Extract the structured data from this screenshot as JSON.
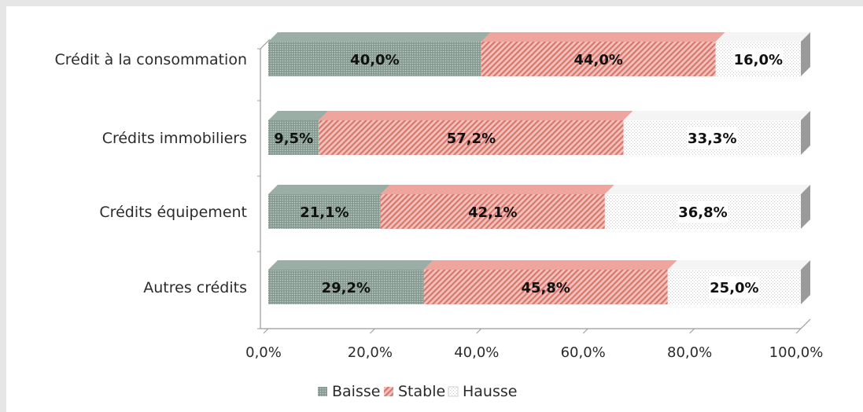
{
  "chart_data": {
    "type": "bar",
    "orientation": "horizontal",
    "stacked": true,
    "three_d": true,
    "categories": [
      "Crédit à la consommation",
      "Crédits immobiliers",
      "Crédits équipement",
      "Autres crédits"
    ],
    "series": [
      {
        "name": "Baisse",
        "values": [
          40.0,
          9.5,
          21.1,
          29.2
        ],
        "labels": [
          "40,0%",
          "9,5%",
          "21,1%",
          "29,2%"
        ],
        "color": "#8fa39b",
        "pattern": "dots"
      },
      {
        "name": "Stable",
        "values": [
          44.0,
          57.2,
          42.1,
          45.8
        ],
        "labels": [
          "44,0%",
          "57,2%",
          "42,1%",
          "45,8%"
        ],
        "color": "#e8948c",
        "pattern": "diagonal"
      },
      {
        "name": "Hausse",
        "values": [
          16.0,
          33.3,
          36.8,
          25.0
        ],
        "labels": [
          "16,0%",
          "33,3%",
          "36,8%",
          "25,0%"
        ],
        "color": "#f2f2f2",
        "pattern": "light-dots"
      }
    ],
    "x_ticks": [
      "0,0%",
      "20,0%",
      "40,0%",
      "60,0%",
      "80,0%",
      "100,0%"
    ],
    "xlim": [
      0,
      100
    ],
    "grid": false,
    "legend": "bottom",
    "title": "",
    "xlabel": "",
    "ylabel": ""
  }
}
